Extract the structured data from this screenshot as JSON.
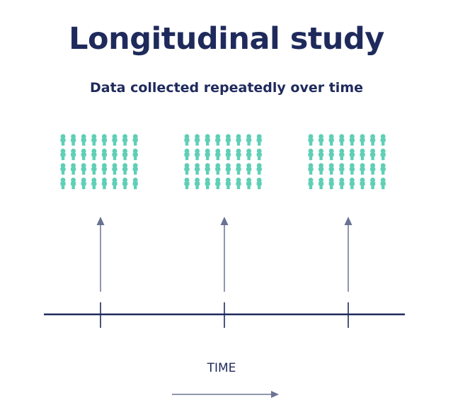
{
  "title": "Longitudinal study",
  "subtitle": "Data collected repeatedly over time",
  "time_axis": {
    "label": "TIME",
    "observation_points": 3
  },
  "people_group": {
    "rows": 4,
    "columns": 8
  },
  "colors": {
    "navy": "#1f2a5c",
    "people": "#5fcfb6",
    "arrow": "#6b7393"
  },
  "icons": {
    "person": "person-icon",
    "arrow": "up-arrow-icon"
  }
}
